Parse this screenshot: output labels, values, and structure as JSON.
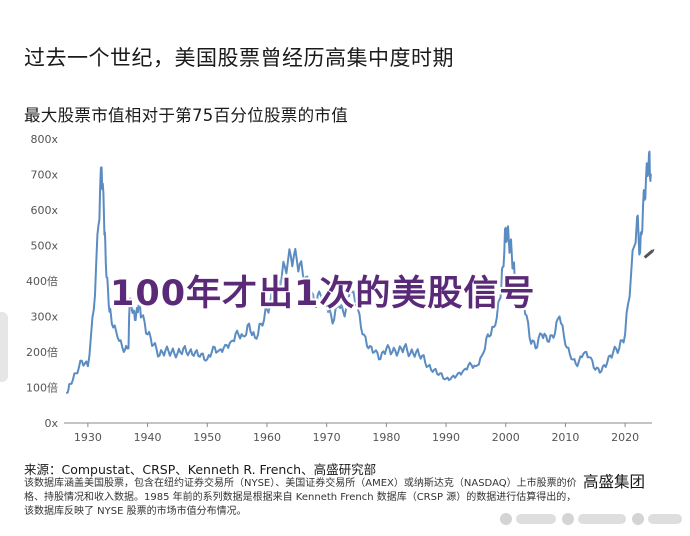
{
  "header": {
    "title": "过去一个世纪，美国股票曾经历高集中度时期",
    "subtitle": "最大股票市值相对于第75百分位股票的市值"
  },
  "banner": "100年才出1次的美股信号",
  "footer": {
    "source": "来源：Compustat、CRSP、Kenneth R. French、高盛研究部",
    "note": "该数据库涵盖美国股票，包含在纽约证券交易所（NYSE）、美国证券交易所（AMEX）或纳斯达克（NASDAQ）上市股票的价格、持股情况和收入数据。1985 年前的系列数据是根据来自 Kenneth French 数据库（CRSP 源）的数据进行估算得出的，该数据库反映了 NYSE 股票的市场市值分布情况。",
    "brand": "高盛集团"
  },
  "colors": {
    "line": "#5b8cc1",
    "banner": "#5a2a78",
    "text": "#1a1a1a",
    "axis": "#8a8a8a"
  },
  "icons": [
    "pencil-icon"
  ],
  "chart_data": {
    "type": "line",
    "title": "",
    "xlabel": "",
    "ylabel": "",
    "xlim": [
      1926,
      2024.5
    ],
    "ylim": [
      0,
      800
    ],
    "grid": false,
    "y_ticks": [
      {
        "value": 0,
        "label": "0x"
      },
      {
        "value": 100,
        "label": "100倍"
      },
      {
        "value": 200,
        "label": "200倍"
      },
      {
        "value": 300,
        "label": "300x"
      },
      {
        "value": 400,
        "label": "400倍"
      },
      {
        "value": 500,
        "label": "500x"
      },
      {
        "value": 600,
        "label": "600x"
      },
      {
        "value": 700,
        "label": "700x"
      },
      {
        "value": 800,
        "label": "800x"
      }
    ],
    "x_ticks": [
      {
        "value": 1930,
        "label": "1930"
      },
      {
        "value": 1940,
        "label": "1940"
      },
      {
        "value": 1950,
        "label": "1950"
      },
      {
        "value": 1960,
        "label": "1960"
      },
      {
        "value": 1970,
        "label": "1970"
      },
      {
        "value": 1980,
        "label": "1980"
      },
      {
        "value": 1990,
        "label": "1990"
      },
      {
        "value": 2000,
        "label": "2000"
      },
      {
        "value": 2010,
        "label": "2010"
      },
      {
        "value": 2020,
        "label": "2020"
      }
    ],
    "series": [
      {
        "values": [
          [
            1926.5,
            85
          ],
          [
            1927,
            110
          ],
          [
            1928,
            140
          ],
          [
            1929,
            175
          ],
          [
            1930,
            160
          ],
          [
            1931,
            320
          ],
          [
            1931.8,
            560
          ],
          [
            1932.3,
            720
          ],
          [
            1932.7,
            580
          ],
          [
            1933,
            450
          ],
          [
            1933.5,
            330
          ],
          [
            1934,
            280
          ],
          [
            1935,
            240
          ],
          [
            1936,
            200
          ],
          [
            1936.8,
            210
          ],
          [
            1937,
            350
          ],
          [
            1937.5,
            310
          ],
          [
            1938,
            290
          ],
          [
            1938.5,
            330
          ],
          [
            1939,
            300
          ],
          [
            1940,
            250
          ],
          [
            1941,
            220
          ],
          [
            1942,
            190
          ],
          [
            1943,
            205
          ],
          [
            1944,
            200
          ],
          [
            1945,
            195
          ],
          [
            1946,
            210
          ],
          [
            1947,
            200
          ],
          [
            1948,
            200
          ],
          [
            1949,
            195
          ],
          [
            1950,
            180
          ],
          [
            1951,
            215
          ],
          [
            1952,
            205
          ],
          [
            1953,
            220
          ],
          [
            1954,
            230
          ],
          [
            1955,
            260
          ],
          [
            1956,
            245
          ],
          [
            1957,
            280
          ],
          [
            1958,
            240
          ],
          [
            1959,
            280
          ],
          [
            1960,
            320
          ],
          [
            1961,
            360
          ],
          [
            1962,
            400
          ],
          [
            1963,
            440
          ],
          [
            1964,
            470
          ],
          [
            1965,
            460
          ],
          [
            1966,
            420
          ],
          [
            1967,
            380
          ],
          [
            1968,
            330
          ],
          [
            1969,
            360
          ],
          [
            1970,
            330
          ],
          [
            1971,
            280
          ],
          [
            1972,
            330
          ],
          [
            1973,
            300
          ],
          [
            1974,
            370
          ],
          [
            1975,
            330
          ],
          [
            1976,
            250
          ],
          [
            1977,
            210
          ],
          [
            1978,
            200
          ],
          [
            1979,
            180
          ],
          [
            1980,
            210
          ],
          [
            1981,
            200
          ],
          [
            1982,
            200
          ],
          [
            1983,
            215
          ],
          [
            1984,
            195
          ],
          [
            1985,
            200
          ],
          [
            1986,
            190
          ],
          [
            1987,
            160
          ],
          [
            1988,
            150
          ],
          [
            1989,
            140
          ],
          [
            1990,
            125
          ],
          [
            1991,
            130
          ],
          [
            1992,
            140
          ],
          [
            1993,
            150
          ],
          [
            1994,
            170
          ],
          [
            1995,
            160
          ],
          [
            1996,
            190
          ],
          [
            1997,
            250
          ],
          [
            1998,
            270
          ],
          [
            1999,
            350
          ],
          [
            1999.5,
            440
          ],
          [
            2000,
            550
          ],
          [
            2000.5,
            520
          ],
          [
            2001,
            480
          ],
          [
            2001.5,
            410
          ],
          [
            2002,
            380
          ],
          [
            2003,
            350
          ],
          [
            2004,
            240
          ],
          [
            2005,
            210
          ],
          [
            2006,
            250
          ],
          [
            2007,
            230
          ],
          [
            2008,
            240
          ],
          [
            2009,
            300
          ],
          [
            2010,
            220
          ],
          [
            2011,
            180
          ],
          [
            2012,
            160
          ],
          [
            2013,
            195
          ],
          [
            2014,
            185
          ],
          [
            2015,
            150
          ],
          [
            2016,
            145
          ],
          [
            2017,
            170
          ],
          [
            2018,
            200
          ],
          [
            2019,
            210
          ],
          [
            2020,
            250
          ],
          [
            2021,
            420
          ],
          [
            2022,
            580
          ],
          [
            2022.5,
            480
          ],
          [
            2023,
            610
          ],
          [
            2023.5,
            690
          ],
          [
            2024,
            760
          ],
          [
            2024.3,
            700
          ]
        ]
      }
    ]
  }
}
